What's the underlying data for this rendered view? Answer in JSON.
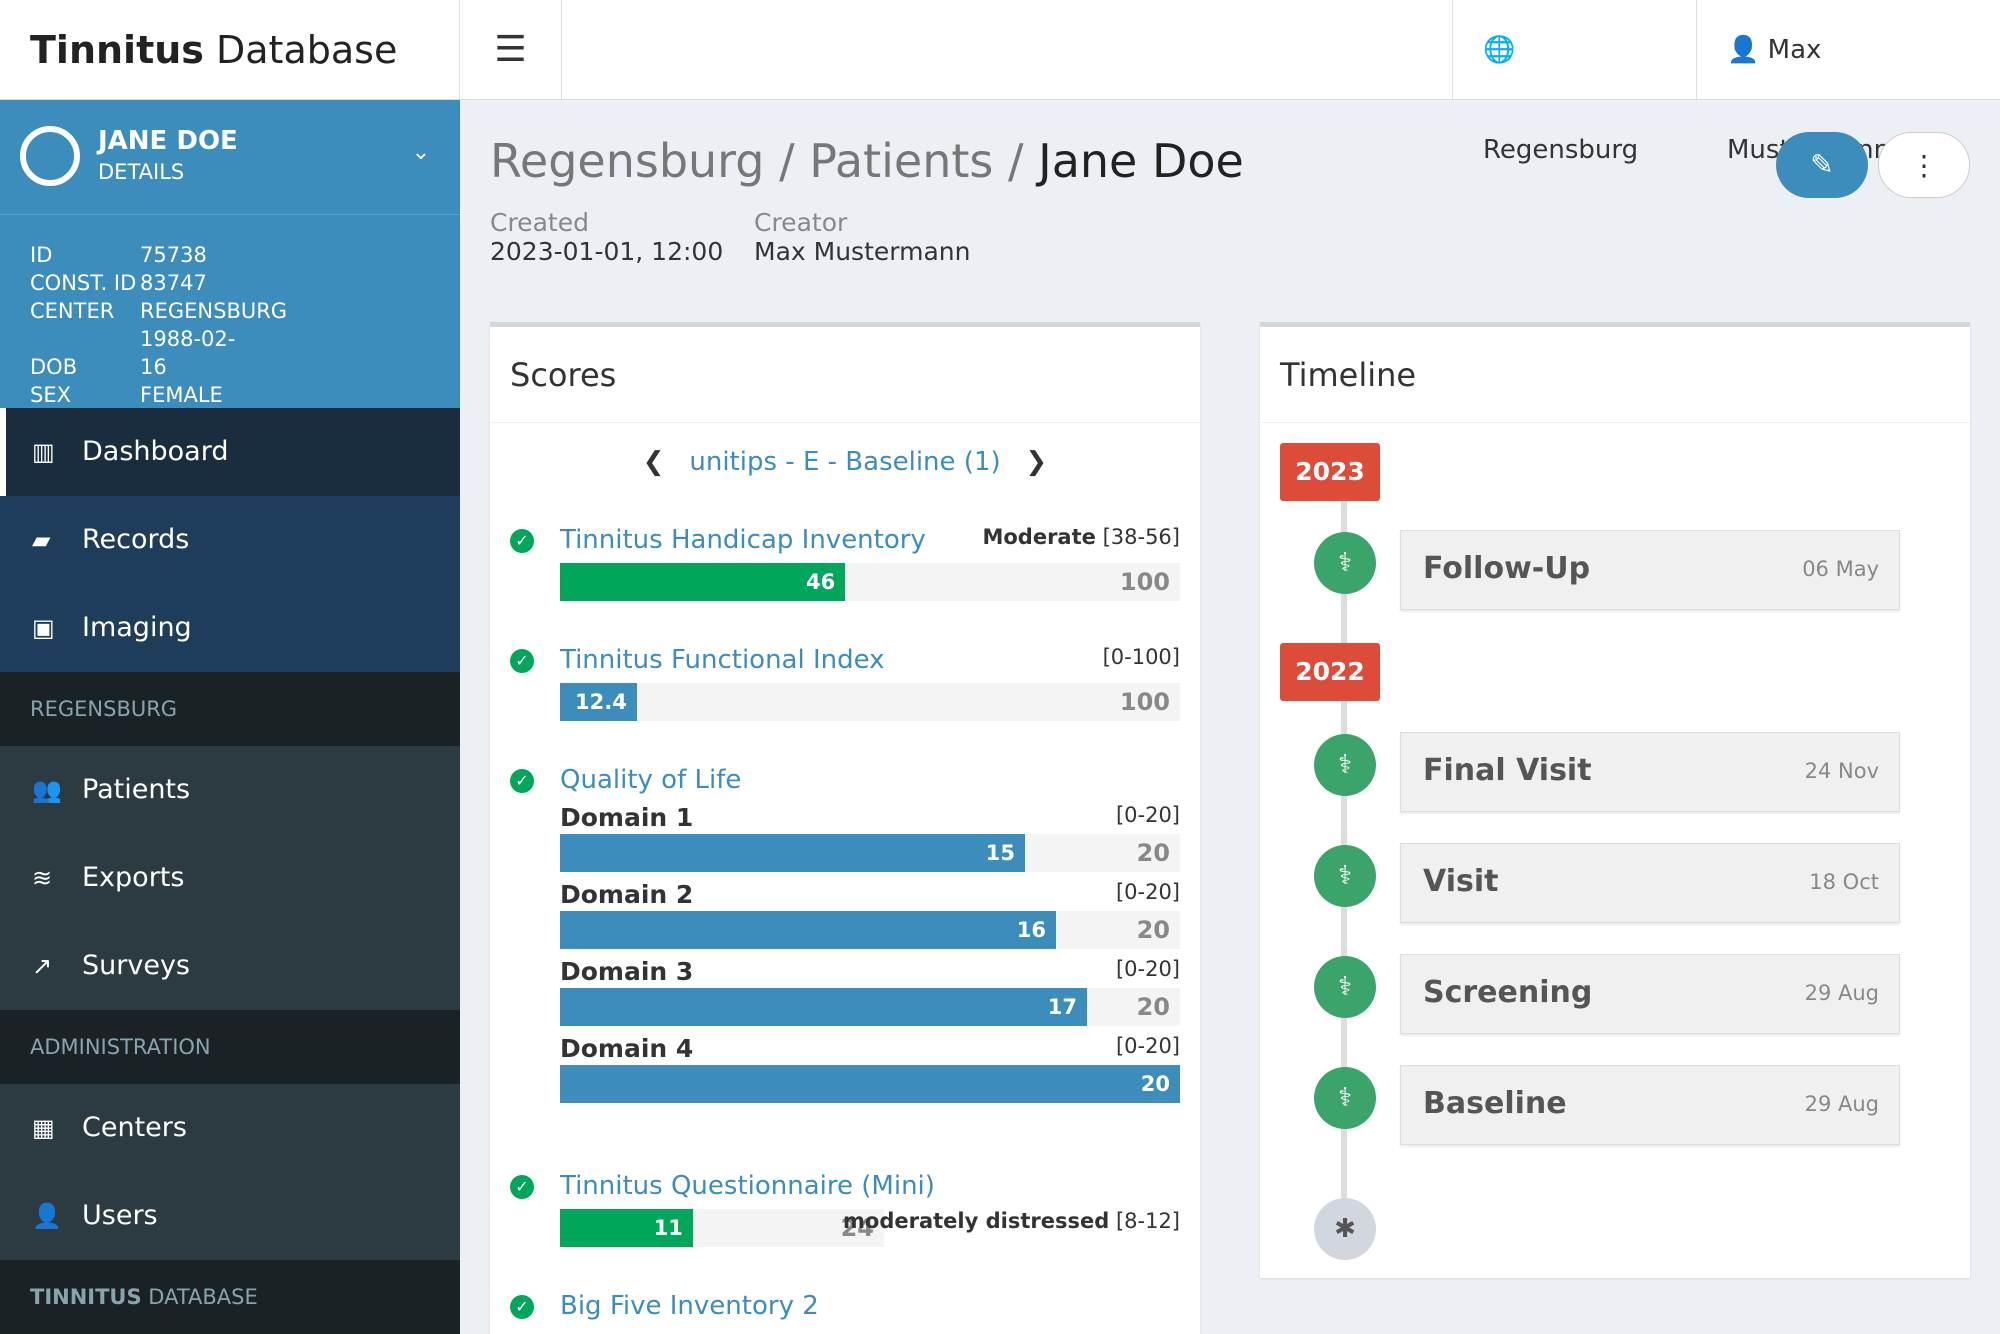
{
  "brand": {
    "bold": "Tinnitus",
    "rest": " Database"
  },
  "top": {
    "menu": "☰",
    "center": "Regensburg",
    "user": "Max Mustermann"
  },
  "sidebar": {
    "user": {
      "name": "JANE DOE",
      "sub": "DETAILS"
    },
    "details": [
      {
        "k": "ID",
        "v": "75738"
      },
      {
        "k": "CONST. ID",
        "v": "83747"
      },
      {
        "k": "CENTER",
        "v": "REGENSBURG"
      },
      {
        "k": "DOB",
        "v": "1988-02-16"
      },
      {
        "k": "SEX",
        "v": "FEMALE"
      }
    ],
    "items": [
      "Dashboard",
      "Records",
      "Imaging"
    ],
    "section1": "REGENSBURG",
    "items2": [
      "Patients",
      "Exports",
      "Surveys"
    ],
    "section2": "ADMINISTRATION",
    "items3": [
      "Centers",
      "Users"
    ],
    "footer_bold": "TINNITUS",
    "footer_rest": " DATABASE"
  },
  "page": {
    "crumb1": "Regensburg",
    "crumb2": "Patients",
    "current": "Jane Doe",
    "created_label": "Created",
    "created": "2023-01-01, 12:00",
    "creator_label": "Creator",
    "creator": "Max Mustermann"
  },
  "scores": {
    "title": "Scores",
    "nav": {
      "a": "unitips",
      "b": "E",
      "c": "Baseline (1)"
    },
    "thi": {
      "name": "Tinnitus Handicap Inventory",
      "label": "Moderate",
      "range": "[38-56]",
      "value": 46,
      "max": 100
    },
    "tfi": {
      "name": "Tinnitus Functional Index",
      "range": "[0-100]",
      "value": 12.4,
      "max": 100
    },
    "qol": {
      "name": "Quality of Life",
      "domains": [
        {
          "name": "Domain 1",
          "range": "[0-20]",
          "value": 15,
          "max": 20
        },
        {
          "name": "Domain 2",
          "range": "[0-20]",
          "value": 16,
          "max": 20
        },
        {
          "name": "Domain 3",
          "range": "[0-20]",
          "value": 17,
          "max": 20
        },
        {
          "name": "Domain 4",
          "range": "[0-20]",
          "value": 20,
          "max": 20
        }
      ]
    },
    "tqm": {
      "name": "Tinnitus Questionnaire (Mini)",
      "value": 11,
      "max": 24,
      "label": "moderately distressed",
      "range": "[8-12]"
    },
    "bfi": {
      "name": "Big Five Inventory 2"
    }
  },
  "timeline": {
    "title": "Timeline",
    "years": [
      "2023",
      "2022"
    ],
    "events": [
      {
        "t": "Follow-Up",
        "d": "06 May"
      },
      {
        "t": "Final Visit",
        "d": "24 Nov"
      },
      {
        "t": "Visit",
        "d": "18 Oct"
      },
      {
        "t": "Screening",
        "d": "29 Aug"
      },
      {
        "t": "Baseline",
        "d": "29 Aug"
      }
    ]
  }
}
